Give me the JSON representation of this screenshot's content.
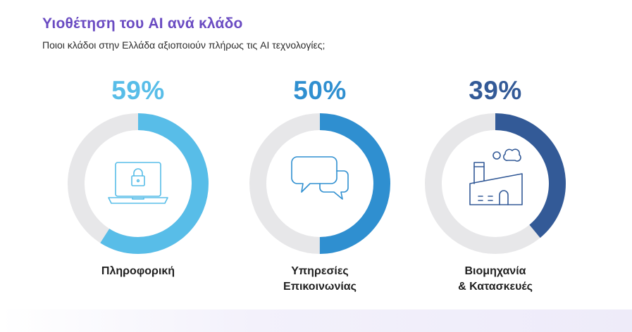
{
  "header": {
    "title": "Υιοθέτηση του AI ανά κλάδο",
    "subtitle": "Ποιοι κλάδοι στην Ελλάδα αξιοποιούν πλήρως τις AI τεχνολογίες;"
  },
  "colors": {
    "track": "#e7e7e9",
    "title": "#6a4bc2",
    "it": "#58bde8",
    "services": "#2f8fd0",
    "industry": "#335a97"
  },
  "chart_data": {
    "type": "donut",
    "title": "Υιοθέτηση του AI ανά κλάδο",
    "subtitle": "Ποιοι κλάδοι στην Ελλάδα αξιοποιούν πλήρως τις AI τεχνολογίες;",
    "unit": "%",
    "series": [
      {
        "name": "Πληροφορική",
        "value": 59,
        "value_label": "59%",
        "color": "#58bde8",
        "icon": "laptop-lock-icon"
      },
      {
        "name": "Υπηρεσίες\nΕπικοινωνίας",
        "value": 50,
        "value_label": "50%",
        "color": "#2f8fd0",
        "icon": "chat-bubbles-icon"
      },
      {
        "name": "Βιομηχανία\n& Κατασκευές",
        "value": 39,
        "value_label": "39%",
        "color": "#335a97",
        "icon": "factory-icon"
      }
    ]
  }
}
